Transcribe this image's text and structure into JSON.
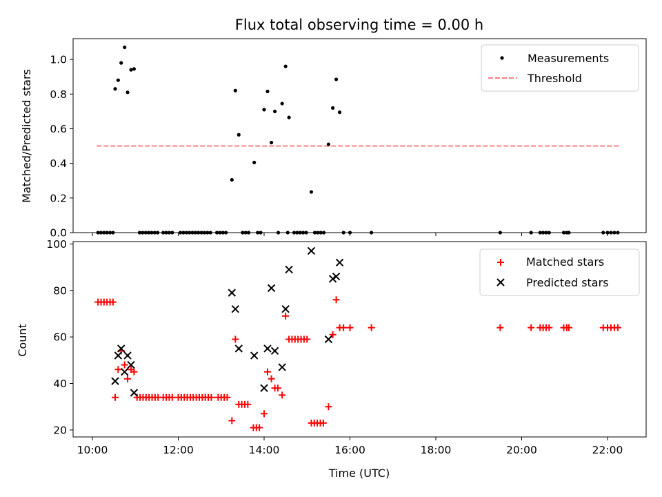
{
  "chart_data": [
    {
      "type": "scatter",
      "title": "Flux total observing time = 0.00 h",
      "ylabel": "Matched/Predicted stars",
      "xlabel": "",
      "xlim": [
        9.55,
        22.9
      ],
      "ylim": [
        0,
        1.12
      ],
      "yticks": [
        {
          "v": 0.0,
          "label": "0.0"
        },
        {
          "v": 0.2,
          "label": "0.2"
        },
        {
          "v": 0.4,
          "label": "0.4"
        },
        {
          "v": 0.6,
          "label": "0.6"
        },
        {
          "v": 0.8,
          "label": "0.8"
        },
        {
          "v": 1.0,
          "label": "1.0"
        }
      ],
      "legend_position": "top-right",
      "threshold": {
        "name": "Threshold",
        "value": 0.5,
        "x_range": [
          10.1,
          22.3
        ],
        "color": "#ff7f7f"
      },
      "series": [
        {
          "name": "Measurements",
          "color": "#000000",
          "points": [
            [
              10.13,
              0
            ],
            [
              10.2,
              0
            ],
            [
              10.27,
              0
            ],
            [
              10.34,
              0
            ],
            [
              10.41,
              0
            ],
            [
              10.48,
              0
            ],
            [
              10.53,
              0.83
            ],
            [
              10.6,
              0.88
            ],
            [
              10.67,
              0.98
            ],
            [
              10.75,
              1.07
            ],
            [
              10.82,
              0.81
            ],
            [
              10.9,
              0.94
            ],
            [
              10.97,
              0.945
            ],
            [
              11.1,
              0
            ],
            [
              11.17,
              0
            ],
            [
              11.24,
              0
            ],
            [
              11.31,
              0
            ],
            [
              11.38,
              0
            ],
            [
              11.45,
              0
            ],
            [
              11.52,
              0
            ],
            [
              11.65,
              0
            ],
            [
              11.72,
              0
            ],
            [
              11.79,
              0
            ],
            [
              11.86,
              0
            ],
            [
              12.05,
              0
            ],
            [
              12.12,
              0
            ],
            [
              12.19,
              0
            ],
            [
              12.26,
              0
            ],
            [
              12.33,
              0
            ],
            [
              12.4,
              0
            ],
            [
              12.47,
              0
            ],
            [
              12.54,
              0
            ],
            [
              12.61,
              0
            ],
            [
              12.68,
              0
            ],
            [
              12.75,
              0
            ],
            [
              12.9,
              0
            ],
            [
              12.97,
              0
            ],
            [
              13.04,
              0
            ],
            [
              13.11,
              0
            ],
            [
              13.25,
              0.305
            ],
            [
              13.33,
              0.82
            ],
            [
              13.41,
              0.565
            ],
            [
              13.5,
              0
            ],
            [
              13.57,
              0
            ],
            [
              13.64,
              0
            ],
            [
              13.77,
              0.405
            ],
            [
              13.85,
              0
            ],
            [
              13.92,
              0
            ],
            [
              14.0,
              0.71
            ],
            [
              14.08,
              0.815
            ],
            [
              14.17,
              0.52
            ],
            [
              14.25,
              0.7
            ],
            [
              14.42,
              0.745
            ],
            [
              14.5,
              0.96
            ],
            [
              14.58,
              0.665
            ],
            [
              14.33,
              0
            ],
            [
              14.55,
              0
            ],
            [
              14.7,
              0
            ],
            [
              14.77,
              0
            ],
            [
              14.84,
              0
            ],
            [
              14.91,
              0
            ],
            [
              14.98,
              0
            ],
            [
              15.1,
              0.235
            ],
            [
              15.18,
              0
            ],
            [
              15.25,
              0
            ],
            [
              15.32,
              0
            ],
            [
              15.39,
              0
            ],
            [
              15.5,
              0.51
            ],
            [
              15.6,
              0.72
            ],
            [
              15.68,
              0.885
            ],
            [
              15.76,
              0.695
            ],
            [
              15.85,
              0
            ],
            [
              16.0,
              0
            ],
            [
              16.5,
              0
            ],
            [
              19.5,
              0
            ],
            [
              20.22,
              0
            ],
            [
              20.43,
              0
            ],
            [
              20.5,
              0
            ],
            [
              20.57,
              0
            ],
            [
              20.64,
              0
            ],
            [
              20.98,
              0
            ],
            [
              21.05,
              0
            ],
            [
              21.1,
              0
            ],
            [
              21.9,
              0
            ],
            [
              22.0,
              0
            ],
            [
              22.08,
              0
            ],
            [
              22.16,
              0
            ],
            [
              22.24,
              0
            ]
          ]
        }
      ]
    },
    {
      "type": "scatter",
      "title": "",
      "ylabel": "Count",
      "xlabel": "Time (UTC)",
      "xlim": [
        9.55,
        22.9
      ],
      "ylim": [
        17,
        101
      ],
      "yticks": [
        {
          "v": 20,
          "label": "20"
        },
        {
          "v": 40,
          "label": "40"
        },
        {
          "v": 60,
          "label": "60"
        },
        {
          "v": 80,
          "label": "80"
        },
        {
          "v": 100,
          "label": "100"
        }
      ],
      "xticks": [
        {
          "v": 10,
          "label": "10:00"
        },
        {
          "v": 12,
          "label": "12:00"
        },
        {
          "v": 14,
          "label": "14:00"
        },
        {
          "v": 16,
          "label": "16:00"
        },
        {
          "v": 18,
          "label": "18:00"
        },
        {
          "v": 20,
          "label": "20:00"
        },
        {
          "v": 22,
          "label": "22:00"
        }
      ],
      "legend_position": "top-right",
      "series": [
        {
          "name": "Matched stars",
          "marker": "plus",
          "color": "#ff0000",
          "points": [
            [
              10.13,
              75
            ],
            [
              10.2,
              75
            ],
            [
              10.27,
              75
            ],
            [
              10.34,
              75
            ],
            [
              10.41,
              75
            ],
            [
              10.48,
              75
            ],
            [
              10.53,
              34
            ],
            [
              10.6,
              46
            ],
            [
              10.67,
              54
            ],
            [
              10.75,
              48
            ],
            [
              10.82,
              42
            ],
            [
              10.9,
              46
            ],
            [
              10.97,
              45
            ],
            [
              11.04,
              34
            ],
            [
              11.11,
              34
            ],
            [
              11.18,
              34
            ],
            [
              11.25,
              34
            ],
            [
              11.32,
              34
            ],
            [
              11.39,
              34
            ],
            [
              11.46,
              34
            ],
            [
              11.53,
              34
            ],
            [
              11.65,
              34
            ],
            [
              11.72,
              34
            ],
            [
              11.79,
              34
            ],
            [
              11.86,
              34
            ],
            [
              12.0,
              34
            ],
            [
              12.07,
              34
            ],
            [
              12.14,
              34
            ],
            [
              12.21,
              34
            ],
            [
              12.28,
              34
            ],
            [
              12.35,
              34
            ],
            [
              12.42,
              34
            ],
            [
              12.49,
              34
            ],
            [
              12.56,
              34
            ],
            [
              12.63,
              34
            ],
            [
              12.7,
              34
            ],
            [
              12.77,
              34
            ],
            [
              12.93,
              34
            ],
            [
              13.0,
              34
            ],
            [
              13.07,
              34
            ],
            [
              13.14,
              34
            ],
            [
              13.25,
              24
            ],
            [
              13.33,
              59
            ],
            [
              13.41,
              31
            ],
            [
              13.48,
              31
            ],
            [
              13.55,
              31
            ],
            [
              13.62,
              31
            ],
            [
              13.75,
              21
            ],
            [
              13.82,
              21
            ],
            [
              13.89,
              21
            ],
            [
              14.0,
              27
            ],
            [
              14.08,
              45
            ],
            [
              14.17,
              42
            ],
            [
              14.25,
              38
            ],
            [
              14.32,
              38
            ],
            [
              14.42,
              35
            ],
            [
              14.5,
              69
            ],
            [
              14.58,
              59
            ],
            [
              14.65,
              59
            ],
            [
              14.72,
              59
            ],
            [
              14.79,
              59
            ],
            [
              14.86,
              59
            ],
            [
              14.93,
              59
            ],
            [
              15.0,
              59
            ],
            [
              15.1,
              23
            ],
            [
              15.17,
              23
            ],
            [
              15.24,
              23
            ],
            [
              15.31,
              23
            ],
            [
              15.38,
              23
            ],
            [
              15.5,
              30
            ],
            [
              15.6,
              61
            ],
            [
              15.68,
              76
            ],
            [
              15.76,
              64
            ],
            [
              15.85,
              64
            ],
            [
              16.0,
              64
            ],
            [
              16.5,
              64
            ],
            [
              19.5,
              64
            ],
            [
              20.22,
              64
            ],
            [
              20.43,
              64
            ],
            [
              20.5,
              64
            ],
            [
              20.57,
              64
            ],
            [
              20.64,
              64
            ],
            [
              20.98,
              64
            ],
            [
              21.05,
              64
            ],
            [
              21.1,
              64
            ],
            [
              21.9,
              64
            ],
            [
              22.0,
              64
            ],
            [
              22.08,
              64
            ],
            [
              22.16,
              64
            ],
            [
              22.24,
              64
            ]
          ]
        },
        {
          "name": "Predicted stars",
          "marker": "x",
          "color": "#000000",
          "points": [
            [
              10.53,
              41
            ],
            [
              10.6,
              52
            ],
            [
              10.67,
              55
            ],
            [
              10.75,
              45
            ],
            [
              10.82,
              52
            ],
            [
              10.9,
              48
            ],
            [
              10.97,
              36
            ],
            [
              13.25,
              79
            ],
            [
              13.33,
              72
            ],
            [
              13.41,
              55
            ],
            [
              13.77,
              52
            ],
            [
              14.0,
              38
            ],
            [
              14.08,
              55
            ],
            [
              14.17,
              81
            ],
            [
              14.25,
              54
            ],
            [
              14.42,
              47
            ],
            [
              14.5,
              72
            ],
            [
              14.58,
              89
            ],
            [
              15.1,
              97
            ],
            [
              15.5,
              59
            ],
            [
              15.6,
              85
            ],
            [
              15.68,
              86
            ],
            [
              15.76,
              92
            ]
          ]
        }
      ]
    }
  ]
}
